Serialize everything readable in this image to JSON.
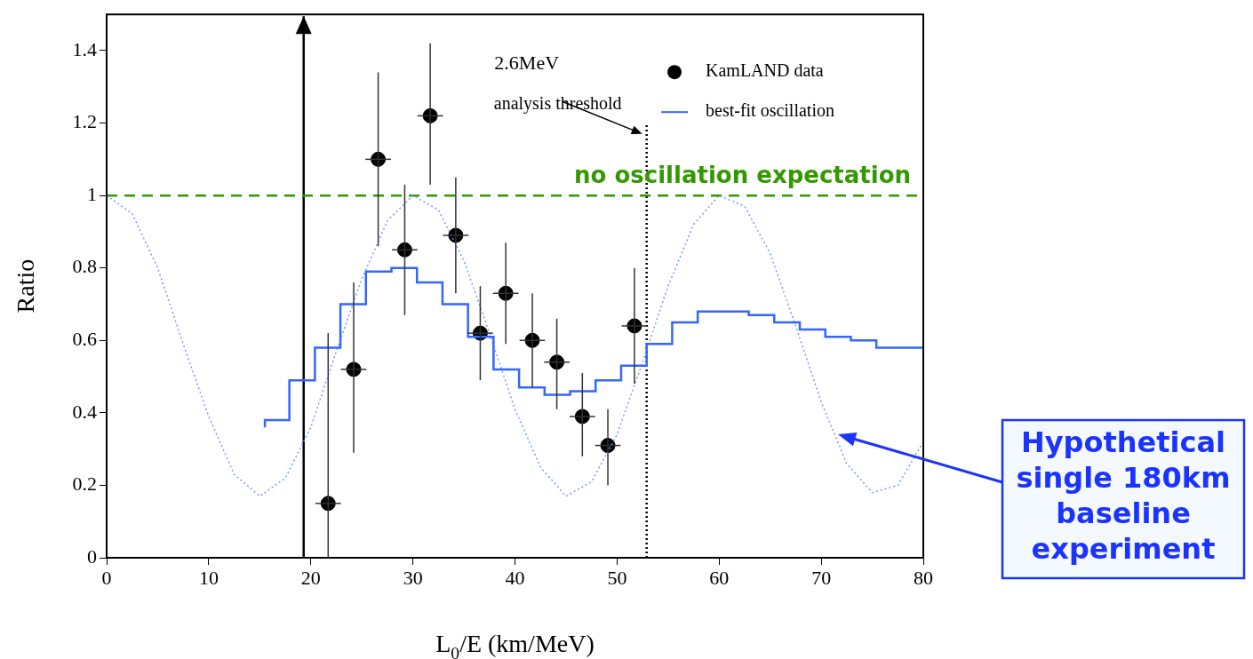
{
  "chart_data": {
    "type": "scatter",
    "xlabel": "L$_{0}$/E (km/MeV)",
    "ylabel": "Ratio",
    "xlim": [
      0,
      80
    ],
    "xticks": [
      0,
      10,
      20,
      30,
      40,
      50,
      60,
      70,
      80
    ],
    "ylim": [
      0,
      1.5
    ],
    "yticks": [
      0,
      0.2,
      0.4,
      0.6,
      0.8,
      1,
      1.2,
      1.4
    ],
    "grid": false,
    "legend": "top right",
    "series": [
      {
        "name": "best-fit oscillation",
        "type": "step",
        "color": "#3366ff",
        "x": [
          15.5,
          17.9,
          20.4,
          22.9,
          25.4,
          27.9,
          30.4,
          32.9,
          35.4,
          37.9,
          40.4,
          42.9,
          45.4,
          47.9,
          50.4,
          52.9,
          55.4,
          57.9,
          60.4,
          62.9,
          65.4,
          67.9,
          70.4,
          72.9,
          75.4,
          77.9,
          80
        ],
        "values": [
          0.36,
          0.38,
          0.49,
          0.58,
          0.7,
          0.79,
          0.8,
          0.76,
          0.7,
          0.61,
          0.52,
          0.47,
          0.45,
          0.46,
          0.49,
          0.53,
          0.59,
          0.65,
          0.68,
          0.68,
          0.67,
          0.65,
          0.63,
          0.61,
          0.6,
          0.58,
          0.58
        ]
      },
      {
        "type": "line",
        "color": "#7799ff",
        "line_style": "dotted",
        "marker": "none",
        "x": [
          0,
          2.5,
          5,
          7.5,
          10,
          12.5,
          15,
          17.5,
          20,
          22.5,
          25,
          27.5,
          30,
          32.5,
          35,
          37.5,
          40,
          42.5,
          45,
          47.5,
          50,
          52.5,
          55,
          57.5,
          60,
          62.5,
          65,
          67.5,
          70,
          72.5,
          75,
          77.5,
          80
        ],
        "values": [
          1,
          0.95,
          0.8,
          0.59,
          0.39,
          0.23,
          0.17,
          0.22,
          0.36,
          0.57,
          0.77,
          0.93,
          1,
          0.96,
          0.82,
          0.62,
          0.41,
          0.25,
          0.17,
          0.21,
          0.34,
          0.54,
          0.75,
          0.92,
          1,
          0.97,
          0.84,
          0.64,
          0.43,
          0.26,
          0.18,
          0.2,
          0.32
        ]
      },
      {
        "name": "KamLAND data",
        "color": "#000000",
        "marker": "circle",
        "x": [
          21.7,
          24.2,
          26.6,
          29.2,
          31.7,
          34.2,
          36.6,
          39.1,
          41.7,
          44.1,
          46.6,
          49.1,
          51.7
        ],
        "values": [
          0.15,
          0.52,
          1.1,
          0.85,
          1.22,
          0.89,
          0.62,
          0.73,
          0.6,
          0.54,
          0.39,
          0.31,
          0.64
        ],
        "errors": [
          [
            0,
            0.62
          ],
          [
            0.29,
            0.76
          ],
          [
            0.86,
            1.34
          ],
          [
            0.67,
            1.03
          ],
          [
            1.03,
            1.42
          ],
          [
            0.73,
            1.05
          ],
          [
            0.49,
            0.75
          ],
          [
            0.59,
            0.87
          ],
          [
            0.47,
            0.73
          ],
          [
            0.41,
            0.66
          ],
          [
            0.28,
            0.51
          ],
          [
            0.2,
            0.41
          ],
          [
            0.48,
            0.8
          ]
        ],
        "xerrors": [
          1.25,
          1.25,
          1.25,
          1.25,
          1.25,
          1.25,
          1.25,
          1.25,
          1.25,
          1.25,
          1.25,
          1.25,
          1.25
        ]
      }
    ],
    "ref_lines": [
      {
        "axis": "x",
        "value": 19.3,
        "color": "#000000",
        "line_style": "solid"
      },
      {
        "axis": "x",
        "value": 52.9,
        "color": "#000000",
        "line_style": "dotted",
        "label": "2.6MeV\nanalysis threshold"
      },
      {
        "axis": "y",
        "value": 1,
        "color": "#339900",
        "line_style": "dashed",
        "label": "no oscillation expectation"
      }
    ],
    "annotations": [
      "Hypothetical single 180km baseline experiment"
    ]
  }
}
